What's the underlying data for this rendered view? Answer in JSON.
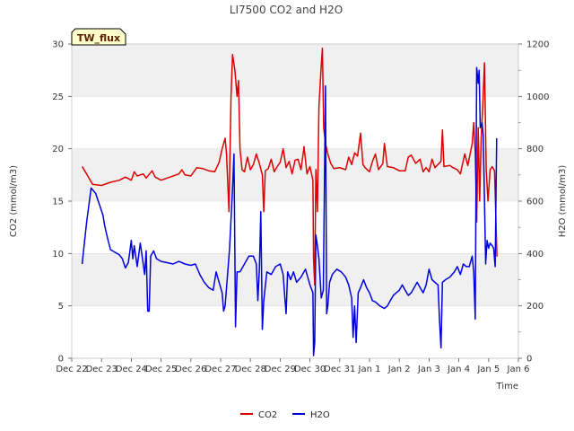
{
  "chart_data": {
    "type": "line",
    "title": "LI7500 CO2 and H2O",
    "badge": "TW_flux",
    "xlabel": "Time",
    "ylabel_left": "CO2 (mmol/m3)",
    "ylabel_right": "H2O (mmol/m3)",
    "xlim": [
      0,
      15
    ],
    "ylim_left": [
      0,
      30
    ],
    "ylim_right": [
      0,
      1200
    ],
    "x_ticks": [
      {
        "x": 0,
        "label": "Dec 22"
      },
      {
        "x": 1,
        "label": "Dec 23"
      },
      {
        "x": 2,
        "label": "Dec 24"
      },
      {
        "x": 3,
        "label": "Dec 25"
      },
      {
        "x": 4,
        "label": "Dec 26"
      },
      {
        "x": 5,
        "label": "Dec 27"
      },
      {
        "x": 6,
        "label": "Dec 28"
      },
      {
        "x": 7,
        "label": "Dec 29"
      },
      {
        "x": 8,
        "label": "Dec 30"
      },
      {
        "x": 9,
        "label": "Dec 31"
      },
      {
        "x": 10,
        "label": "Jan 1"
      },
      {
        "x": 11,
        "label": "Jan 2"
      },
      {
        "x": 12,
        "label": "Jan 3"
      },
      {
        "x": 13,
        "label": "Jan 4"
      },
      {
        "x": 14,
        "label": "Jan 5"
      },
      {
        "x": 15,
        "label": "Jan 6"
      }
    ],
    "y_ticks_left": [
      0,
      5,
      10,
      15,
      20,
      25,
      30
    ],
    "y_ticks_right": [
      0,
      200,
      400,
      600,
      800,
      1000,
      1200
    ],
    "grid": "horizontal bands",
    "legend_position": "bottom-center",
    "series": [
      {
        "name": "CO2",
        "axis": "left",
        "color": "#dd0000",
        "points": [
          [
            0.35,
            18.3
          ],
          [
            0.5,
            17.6
          ],
          [
            0.7,
            16.6
          ],
          [
            1.0,
            16.5
          ],
          [
            1.3,
            16.8
          ],
          [
            1.6,
            17.0
          ],
          [
            1.8,
            17.3
          ],
          [
            2.0,
            17.0
          ],
          [
            2.1,
            17.8
          ],
          [
            2.2,
            17.4
          ],
          [
            2.4,
            17.6
          ],
          [
            2.5,
            17.2
          ],
          [
            2.7,
            17.9
          ],
          [
            2.8,
            17.3
          ],
          [
            3.0,
            17.0
          ],
          [
            3.3,
            17.3
          ],
          [
            3.6,
            17.6
          ],
          [
            3.7,
            18.0
          ],
          [
            3.8,
            17.5
          ],
          [
            4.0,
            17.4
          ],
          [
            4.2,
            18.2
          ],
          [
            4.4,
            18.1
          ],
          [
            4.6,
            17.9
          ],
          [
            4.8,
            17.8
          ],
          [
            4.95,
            18.7
          ],
          [
            5.05,
            20.0
          ],
          [
            5.15,
            21.0
          ],
          [
            5.2,
            19.5
          ],
          [
            5.28,
            14.0
          ],
          [
            5.35,
            25.0
          ],
          [
            5.4,
            29.0
          ],
          [
            5.48,
            27.5
          ],
          [
            5.55,
            25.0
          ],
          [
            5.6,
            26.5
          ],
          [
            5.65,
            20.0
          ],
          [
            5.72,
            18.0
          ],
          [
            5.8,
            17.8
          ],
          [
            5.9,
            19.2
          ],
          [
            6.0,
            18.0
          ],
          [
            6.1,
            18.5
          ],
          [
            6.2,
            19.5
          ],
          [
            6.3,
            18.6
          ],
          [
            6.4,
            17.5
          ],
          [
            6.45,
            14.0
          ],
          [
            6.5,
            17.9
          ],
          [
            6.6,
            18.1
          ],
          [
            6.7,
            19.0
          ],
          [
            6.8,
            17.8
          ],
          [
            6.9,
            18.3
          ],
          [
            7.0,
            18.7
          ],
          [
            7.1,
            20.0
          ],
          [
            7.2,
            18.2
          ],
          [
            7.3,
            18.8
          ],
          [
            7.4,
            17.6
          ],
          [
            7.5,
            18.9
          ],
          [
            7.6,
            19.0
          ],
          [
            7.7,
            18.0
          ],
          [
            7.8,
            20.2
          ],
          [
            7.9,
            17.6
          ],
          [
            8.0,
            18.3
          ],
          [
            8.1,
            17.0
          ],
          [
            8.12,
            9.5
          ],
          [
            8.16,
            7.0
          ],
          [
            8.2,
            18.0
          ],
          [
            8.25,
            14.0
          ],
          [
            8.3,
            24.0
          ],
          [
            8.38,
            28.0
          ],
          [
            8.42,
            29.6
          ],
          [
            8.46,
            22.0
          ],
          [
            8.52,
            20.5
          ],
          [
            8.6,
            19.5
          ],
          [
            8.7,
            18.6
          ],
          [
            8.8,
            18.1
          ],
          [
            9.0,
            18.2
          ],
          [
            9.2,
            18.0
          ],
          [
            9.3,
            19.2
          ],
          [
            9.4,
            18.5
          ],
          [
            9.5,
            19.6
          ],
          [
            9.6,
            19.3
          ],
          [
            9.7,
            21.5
          ],
          [
            9.78,
            18.5
          ],
          [
            9.85,
            18.2
          ],
          [
            10.0,
            17.8
          ],
          [
            10.1,
            18.8
          ],
          [
            10.2,
            19.5
          ],
          [
            10.3,
            18.0
          ],
          [
            10.45,
            18.6
          ],
          [
            10.5,
            20.5
          ],
          [
            10.6,
            18.3
          ],
          [
            10.8,
            18.2
          ],
          [
            11.0,
            17.9
          ],
          [
            11.2,
            17.9
          ],
          [
            11.3,
            19.2
          ],
          [
            11.4,
            19.4
          ],
          [
            11.55,
            18.6
          ],
          [
            11.7,
            19.0
          ],
          [
            11.8,
            17.8
          ],
          [
            11.9,
            18.2
          ],
          [
            12.0,
            17.8
          ],
          [
            12.1,
            19.0
          ],
          [
            12.2,
            18.2
          ],
          [
            12.4,
            18.8
          ],
          [
            12.45,
            21.8
          ],
          [
            12.5,
            18.3
          ],
          [
            12.7,
            18.4
          ],
          [
            12.8,
            18.2
          ],
          [
            12.95,
            18.0
          ],
          [
            13.05,
            17.6
          ],
          [
            13.2,
            19.5
          ],
          [
            13.3,
            18.4
          ],
          [
            13.45,
            20.5
          ],
          [
            13.5,
            22.5
          ],
          [
            13.55,
            19.5
          ],
          [
            13.6,
            13.0
          ],
          [
            13.65,
            22.0
          ],
          [
            13.7,
            15.0
          ],
          [
            13.75,
            21.0
          ],
          [
            13.8,
            24.0
          ],
          [
            13.86,
            28.2
          ],
          [
            13.92,
            18.0
          ],
          [
            13.98,
            15.0
          ],
          [
            14.05,
            18.0
          ],
          [
            14.12,
            18.3
          ],
          [
            14.2,
            17.9
          ],
          [
            14.28,
            9.7
          ]
        ]
      },
      {
        "name": "H2O",
        "axis": "right",
        "color": "#0000dd",
        "points": [
          [
            0.35,
            360
          ],
          [
            0.5,
            520
          ],
          [
            0.65,
            650
          ],
          [
            0.8,
            630
          ],
          [
            0.95,
            580
          ],
          [
            1.05,
            545
          ],
          [
            1.1,
            510
          ],
          [
            1.2,
            460
          ],
          [
            1.3,
            415
          ],
          [
            1.45,
            405
          ],
          [
            1.6,
            395
          ],
          [
            1.7,
            380
          ],
          [
            1.8,
            345
          ],
          [
            1.9,
            365
          ],
          [
            2.0,
            450
          ],
          [
            2.05,
            380
          ],
          [
            2.1,
            430
          ],
          [
            2.2,
            350
          ],
          [
            2.3,
            440
          ],
          [
            2.4,
            360
          ],
          [
            2.45,
            320
          ],
          [
            2.5,
            410
          ],
          [
            2.55,
            180
          ],
          [
            2.6,
            180
          ],
          [
            2.65,
            390
          ],
          [
            2.75,
            410
          ],
          [
            2.85,
            380
          ],
          [
            3.0,
            370
          ],
          [
            3.2,
            365
          ],
          [
            3.4,
            360
          ],
          [
            3.6,
            370
          ],
          [
            3.8,
            360
          ],
          [
            4.0,
            355
          ],
          [
            4.15,
            360
          ],
          [
            4.3,
            320
          ],
          [
            4.45,
            290
          ],
          [
            4.6,
            270
          ],
          [
            4.75,
            260
          ],
          [
            4.85,
            330
          ],
          [
            4.95,
            290
          ],
          [
            5.05,
            250
          ],
          [
            5.1,
            180
          ],
          [
            5.15,
            200
          ],
          [
            5.2,
            270
          ],
          [
            5.3,
            420
          ],
          [
            5.4,
            650
          ],
          [
            5.45,
            780
          ],
          [
            5.5,
            120
          ],
          [
            5.55,
            330
          ],
          [
            5.65,
            330
          ],
          [
            5.8,
            360
          ],
          [
            5.95,
            390
          ],
          [
            6.1,
            390
          ],
          [
            6.2,
            360
          ],
          [
            6.25,
            220
          ],
          [
            6.3,
            340
          ],
          [
            6.35,
            560
          ],
          [
            6.4,
            110
          ],
          [
            6.45,
            220
          ],
          [
            6.55,
            330
          ],
          [
            6.7,
            320
          ],
          [
            6.85,
            350
          ],
          [
            7.0,
            360
          ],
          [
            7.1,
            320
          ],
          [
            7.15,
            240
          ],
          [
            7.2,
            170
          ],
          [
            7.25,
            330
          ],
          [
            7.35,
            300
          ],
          [
            7.45,
            330
          ],
          [
            7.55,
            290
          ],
          [
            7.7,
            310
          ],
          [
            7.85,
            340
          ],
          [
            8.0,
            280
          ],
          [
            8.1,
            250
          ],
          [
            8.12,
            10
          ],
          [
            8.16,
            60
          ],
          [
            8.2,
            470
          ],
          [
            8.25,
            430
          ],
          [
            8.3,
            380
          ],
          [
            8.38,
            230
          ],
          [
            8.45,
            260
          ],
          [
            8.52,
            1040
          ],
          [
            8.56,
            170
          ],
          [
            8.6,
            200
          ],
          [
            8.66,
            290
          ],
          [
            8.75,
            320
          ],
          [
            8.9,
            340
          ],
          [
            9.05,
            330
          ],
          [
            9.2,
            310
          ],
          [
            9.3,
            280
          ],
          [
            9.4,
            230
          ],
          [
            9.45,
            80
          ],
          [
            9.5,
            200
          ],
          [
            9.55,
            60
          ],
          [
            9.62,
            250
          ],
          [
            9.7,
            270
          ],
          [
            9.8,
            300
          ],
          [
            9.9,
            270
          ],
          [
            10.0,
            250
          ],
          [
            10.1,
            220
          ],
          [
            10.2,
            215
          ],
          [
            10.35,
            200
          ],
          [
            10.5,
            190
          ],
          [
            10.6,
            200
          ],
          [
            10.7,
            220
          ],
          [
            10.8,
            240
          ],
          [
            10.9,
            250
          ],
          [
            11.0,
            260
          ],
          [
            11.1,
            280
          ],
          [
            11.2,
            260
          ],
          [
            11.3,
            240
          ],
          [
            11.4,
            250
          ],
          [
            11.5,
            270
          ],
          [
            11.6,
            290
          ],
          [
            11.7,
            270
          ],
          [
            11.8,
            250
          ],
          [
            11.9,
            280
          ],
          [
            12.0,
            340
          ],
          [
            12.1,
            300
          ],
          [
            12.2,
            290
          ],
          [
            12.3,
            280
          ],
          [
            12.35,
            150
          ],
          [
            12.4,
            40
          ],
          [
            12.45,
            290
          ],
          [
            12.55,
            300
          ],
          [
            12.7,
            310
          ],
          [
            12.85,
            330
          ],
          [
            12.95,
            350
          ],
          [
            13.05,
            320
          ],
          [
            13.15,
            360
          ],
          [
            13.25,
            350
          ],
          [
            13.35,
            350
          ],
          [
            13.45,
            390
          ],
          [
            13.5,
            330
          ],
          [
            13.55,
            150
          ],
          [
            13.6,
            1110
          ],
          [
            13.65,
            1050
          ],
          [
            13.68,
            1100
          ],
          [
            13.72,
            880
          ],
          [
            13.78,
            900
          ],
          [
            13.82,
            850
          ],
          [
            13.86,
            600
          ],
          [
            13.9,
            360
          ],
          [
            13.95,
            450
          ],
          [
            14.0,
            420
          ],
          [
            14.05,
            440
          ],
          [
            14.12,
            430
          ],
          [
            14.17,
            420
          ],
          [
            14.22,
            350
          ],
          [
            14.27,
            840
          ]
        ]
      }
    ]
  },
  "legend": [
    {
      "name": "CO2",
      "color": "#dd0000"
    },
    {
      "name": "H2O",
      "color": "#0000dd"
    }
  ]
}
